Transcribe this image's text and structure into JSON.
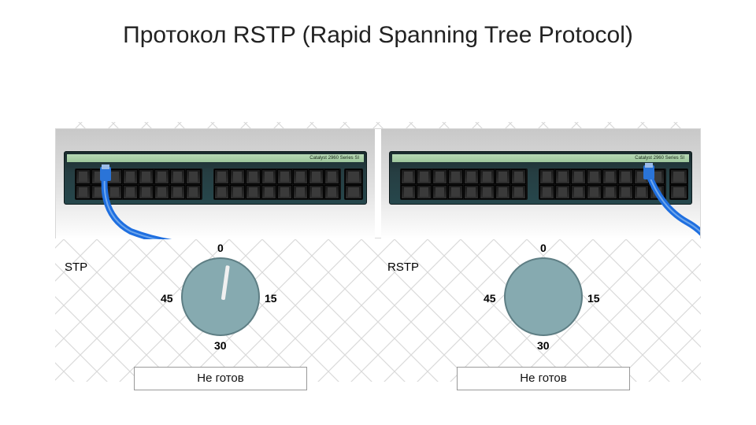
{
  "title": "Протокол RSTP (Rapid Spanning Tree Protocol)",
  "switch_model_text": "Catalyst 2960 Series SI",
  "background": {
    "hatch_color": "#dadada",
    "hatch_spacing": 42
  },
  "cable": {
    "color": "#1f6fe0",
    "connector_color": "#2a74d8",
    "highlight": "#6fa7ec",
    "width": 8
  },
  "ports": {
    "columns_per_block": 8,
    "rows": 2
  },
  "panels": [
    {
      "id": "stp",
      "label": "STP",
      "clock_color": "#86aab0",
      "clock_border": "#5e7e84",
      "hand_color": "#f0f0f0",
      "ticks": {
        "top": "0",
        "right": "15",
        "bottom": "30",
        "left": "45"
      },
      "hand_angle_deg": 8,
      "status": "Не готов",
      "cable_plug_port_col": 2
    },
    {
      "id": "rstp",
      "label": "RSTP",
      "clock_color": "#86aab0",
      "clock_border": "#5e7e84",
      "hand_color": "#f0f0f0",
      "ticks": {
        "top": "0",
        "right": "15",
        "bottom": "30",
        "left": "45"
      },
      "hand_angle_deg": 0,
      "status": "Не готов",
      "cable_plug_port_col": 7
    }
  ]
}
